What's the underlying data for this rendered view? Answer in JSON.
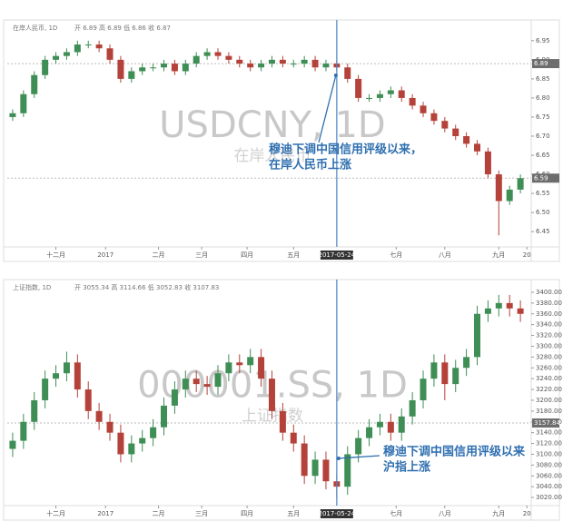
{
  "chart_data": [
    {
      "type": "candlestick",
      "header": "在岸人民币, 1D",
      "ohlc_header": "开 6.89 高 6.89 低 6.86 收 6.87",
      "watermark": "USDCNY, 1D",
      "watermark_sub": "在岸人民币",
      "annotation": [
        "穆迪下调中国信用评级以来，",
        "在岸人民币上涨"
      ],
      "event_x": 30,
      "event_label": "2017-05-24",
      "price_labels": [
        {
          "value": 6.89,
          "label": "6.89"
        },
        {
          "value": 6.59,
          "label": "6.59"
        }
      ],
      "up_color": "#3e8e55",
      "down_color": "#b5423a",
      "x": [
        0,
        1,
        2,
        3,
        4,
        5,
        6,
        7,
        8,
        9,
        10,
        11,
        12,
        13,
        14,
        15,
        16,
        17,
        18,
        19,
        20,
        21,
        22,
        23,
        24,
        25,
        26,
        27,
        28,
        29,
        30,
        31,
        32,
        33,
        34,
        35,
        36,
        37,
        38,
        39,
        40,
        41,
        42,
        43,
        44,
        45,
        46,
        47
      ],
      "open": [
        6.75,
        6.76,
        6.81,
        6.86,
        6.9,
        6.91,
        6.92,
        6.94,
        6.94,
        6.93,
        6.9,
        6.85,
        6.87,
        6.88,
        6.88,
        6.89,
        6.87,
        6.89,
        6.91,
        6.92,
        6.91,
        6.9,
        6.89,
        6.88,
        6.89,
        6.9,
        6.89,
        6.89,
        6.9,
        6.88,
        6.89,
        6.88,
        6.85,
        6.8,
        6.8,
        6.81,
        6.82,
        6.8,
        6.78,
        6.76,
        6.74,
        6.72,
        6.7,
        6.68,
        6.66,
        6.6,
        6.53,
        6.56
      ],
      "high": [
        6.77,
        6.82,
        6.87,
        6.91,
        6.92,
        6.93,
        6.95,
        6.95,
        6.95,
        6.94,
        6.91,
        6.88,
        6.89,
        6.89,
        6.9,
        6.9,
        6.9,
        6.92,
        6.93,
        6.93,
        6.92,
        6.91,
        6.9,
        6.9,
        6.91,
        6.91,
        6.9,
        6.91,
        6.91,
        6.9,
        6.9,
        6.89,
        6.86,
        6.81,
        6.82,
        6.83,
        6.83,
        6.81,
        6.79,
        6.77,
        6.75,
        6.73,
        6.71,
        6.69,
        6.67,
        6.61,
        6.57,
        6.6
      ],
      "low": [
        6.74,
        6.75,
        6.8,
        6.85,
        6.89,
        6.9,
        6.91,
        6.93,
        6.92,
        6.89,
        6.84,
        6.84,
        6.86,
        6.87,
        6.87,
        6.86,
        6.86,
        6.88,
        6.9,
        6.9,
        6.89,
        6.88,
        6.87,
        6.87,
        6.88,
        6.88,
        6.88,
        6.88,
        6.87,
        6.87,
        6.87,
        6.84,
        6.79,
        6.79,
        6.79,
        6.8,
        6.79,
        6.77,
        6.75,
        6.73,
        6.71,
        6.69,
        6.67,
        6.65,
        6.59,
        6.44,
        6.52,
        6.55
      ],
      "close": [
        6.76,
        6.81,
        6.86,
        6.9,
        6.91,
        6.92,
        6.94,
        6.94,
        6.93,
        6.9,
        6.85,
        6.87,
        6.88,
        6.88,
        6.89,
        6.87,
        6.89,
        6.91,
        6.92,
        6.91,
        6.9,
        6.89,
        6.88,
        6.89,
        6.9,
        6.89,
        6.89,
        6.9,
        6.88,
        6.89,
        6.88,
        6.85,
        6.8,
        6.8,
        6.81,
        6.82,
        6.8,
        6.78,
        6.76,
        6.74,
        6.72,
        6.7,
        6.68,
        6.66,
        6.6,
        6.53,
        6.56,
        6.59
      ],
      "xlim": [
        -0.5,
        48
      ],
      "ylim": [
        6.41,
        6.99
      ],
      "xticks": [
        {
          "value": 4,
          "label": "十二月"
        },
        {
          "value": 8.6,
          "label": "2017"
        },
        {
          "value": 13.5,
          "label": "二月"
        },
        {
          "value": 17.5,
          "label": "三月"
        },
        {
          "value": 21.7,
          "label": "四月"
        },
        {
          "value": 26,
          "label": "五月"
        },
        {
          "value": 35.5,
          "label": "七月"
        },
        {
          "value": 40,
          "label": "八月"
        },
        {
          "value": 45,
          "label": "九月"
        },
        {
          "value": 47.6,
          "label": "20"
        }
      ],
      "yticks": [
        6.45,
        {
          "value": 6.5,
          "label": "6.50"
        },
        6.55,
        {
          "value": 6.6,
          "label": "6.60"
        },
        6.65,
        {
          "value": 6.7,
          "label": "6.70"
        },
        6.75,
        {
          "value": 6.8,
          "label": "6.80"
        },
        6.85,
        {
          "value": 6.9,
          "label": "6.90"
        },
        6.95
      ]
    },
    {
      "type": "candlestick",
      "header": "上证指数, 1D",
      "ohlc_header": "开 3055.34 高 3114.66 低 3052.83 收 3107.83",
      "watermark": "000001.SS, 1D",
      "watermark_sub": "上证指数",
      "annotation": [
        "穆迪下调中国信用评级以来",
        "沪指上涨"
      ],
      "event_x": 30,
      "event_label": "2017-05-24",
      "price_labels": [
        {
          "value": 3157.84,
          "label": "3157.84"
        }
      ],
      "up_color": "#3e8e55",
      "down_color": "#b5423a",
      "x": [
        0,
        1,
        2,
        3,
        4,
        5,
        6,
        7,
        8,
        9,
        10,
        11,
        12,
        13,
        14,
        15,
        16,
        17,
        18,
        19,
        20,
        21,
        22,
        23,
        24,
        25,
        26,
        27,
        28,
        29,
        30,
        31,
        32,
        33,
        34,
        35,
        36,
        37,
        38,
        39,
        40,
        41,
        42,
        43,
        44,
        45,
        46,
        47
      ],
      "open": [
        3110,
        3125,
        3160,
        3200,
        3240,
        3250,
        3270,
        3220,
        3180,
        3160,
        3140,
        3100,
        3120,
        3130,
        3150,
        3190,
        3220,
        3240,
        3230,
        3225,
        3250,
        3270,
        3265,
        3280,
        3240,
        3180,
        3140,
        3120,
        3060,
        3090,
        3050,
        3040,
        3100,
        3130,
        3150,
        3160,
        3140,
        3170,
        3200,
        3240,
        3270,
        3230,
        3260,
        3280,
        3360,
        3370,
        3380,
        3370
      ],
      "high": [
        3140,
        3175,
        3215,
        3255,
        3265,
        3290,
        3285,
        3235,
        3195,
        3175,
        3155,
        3135,
        3145,
        3165,
        3205,
        3235,
        3255,
        3255,
        3245,
        3265,
        3285,
        3285,
        3295,
        3295,
        3255,
        3195,
        3155,
        3135,
        3105,
        3105,
        3065,
        3115,
        3145,
        3165,
        3175,
        3175,
        3185,
        3215,
        3255,
        3285,
        3285,
        3275,
        3295,
        3375,
        3385,
        3395,
        3395,
        3385
      ],
      "low": [
        3095,
        3110,
        3145,
        3185,
        3225,
        3235,
        3205,
        3165,
        3145,
        3125,
        3085,
        3085,
        3105,
        3115,
        3135,
        3175,
        3205,
        3215,
        3210,
        3210,
        3235,
        3250,
        3250,
        3225,
        3165,
        3125,
        3105,
        3045,
        3045,
        3035,
        3020,
        3025,
        3085,
        3115,
        3135,
        3125,
        3125,
        3155,
        3185,
        3225,
        3200,
        3215,
        3245,
        3265,
        3345,
        3355,
        3355,
        3345
      ],
      "close": [
        3125,
        3160,
        3200,
        3240,
        3250,
        3270,
        3220,
        3180,
        3160,
        3140,
        3100,
        3120,
        3130,
        3150,
        3190,
        3220,
        3240,
        3230,
        3225,
        3250,
        3270,
        3265,
        3280,
        3240,
        3180,
        3140,
        3120,
        3060,
        3090,
        3050,
        3040,
        3100,
        3130,
        3150,
        3160,
        3140,
        3170,
        3200,
        3240,
        3270,
        3230,
        3260,
        3280,
        3360,
        3370,
        3380,
        3370,
        3360
      ],
      "xlim": [
        -0.5,
        48
      ],
      "ylim": [
        3005,
        3410
      ],
      "xticks": [
        {
          "value": 4,
          "label": "十二月"
        },
        {
          "value": 8.6,
          "label": "2017"
        },
        {
          "value": 13.5,
          "label": "二月"
        },
        {
          "value": 17.5,
          "label": "三月"
        },
        {
          "value": 21.7,
          "label": "四月"
        },
        {
          "value": 26,
          "label": "五月"
        },
        {
          "value": 35.5,
          "label": "七月"
        },
        {
          "value": 40,
          "label": "八月"
        },
        {
          "value": 45,
          "label": "九月"
        },
        {
          "value": 47.6,
          "label": "20"
        }
      ],
      "yticks": [
        {
          "value": 3020,
          "label": "3020.00"
        },
        {
          "value": 3040,
          "label": "3040.00"
        },
        {
          "value": 3060,
          "label": "3060.00"
        },
        {
          "value": 3080,
          "label": "3080.00"
        },
        {
          "value": 3100,
          "label": "3100.00"
        },
        {
          "value": 3120,
          "label": "3120.00"
        },
        {
          "value": 3140,
          "label": "3140.00"
        },
        {
          "value": 3160,
          "label": "3160.00"
        },
        {
          "value": 3180,
          "label": "3180.00"
        },
        {
          "value": 3200,
          "label": "3200.00"
        },
        {
          "value": 3220,
          "label": "3220.00"
        },
        {
          "value": 3240,
          "label": "3240.00"
        },
        {
          "value": 3260,
          "label": "3260.00"
        },
        {
          "value": 3280,
          "label": "3280.00"
        },
        {
          "value": 3300,
          "label": "3300.00"
        },
        {
          "value": 3320,
          "label": "3320.00"
        },
        {
          "value": 3340,
          "label": "3340.00"
        },
        {
          "value": 3360,
          "label": "3360.00"
        },
        {
          "value": 3380,
          "label": "3380.00"
        },
        {
          "value": 3400,
          "label": "3400.00"
        }
      ]
    }
  ]
}
